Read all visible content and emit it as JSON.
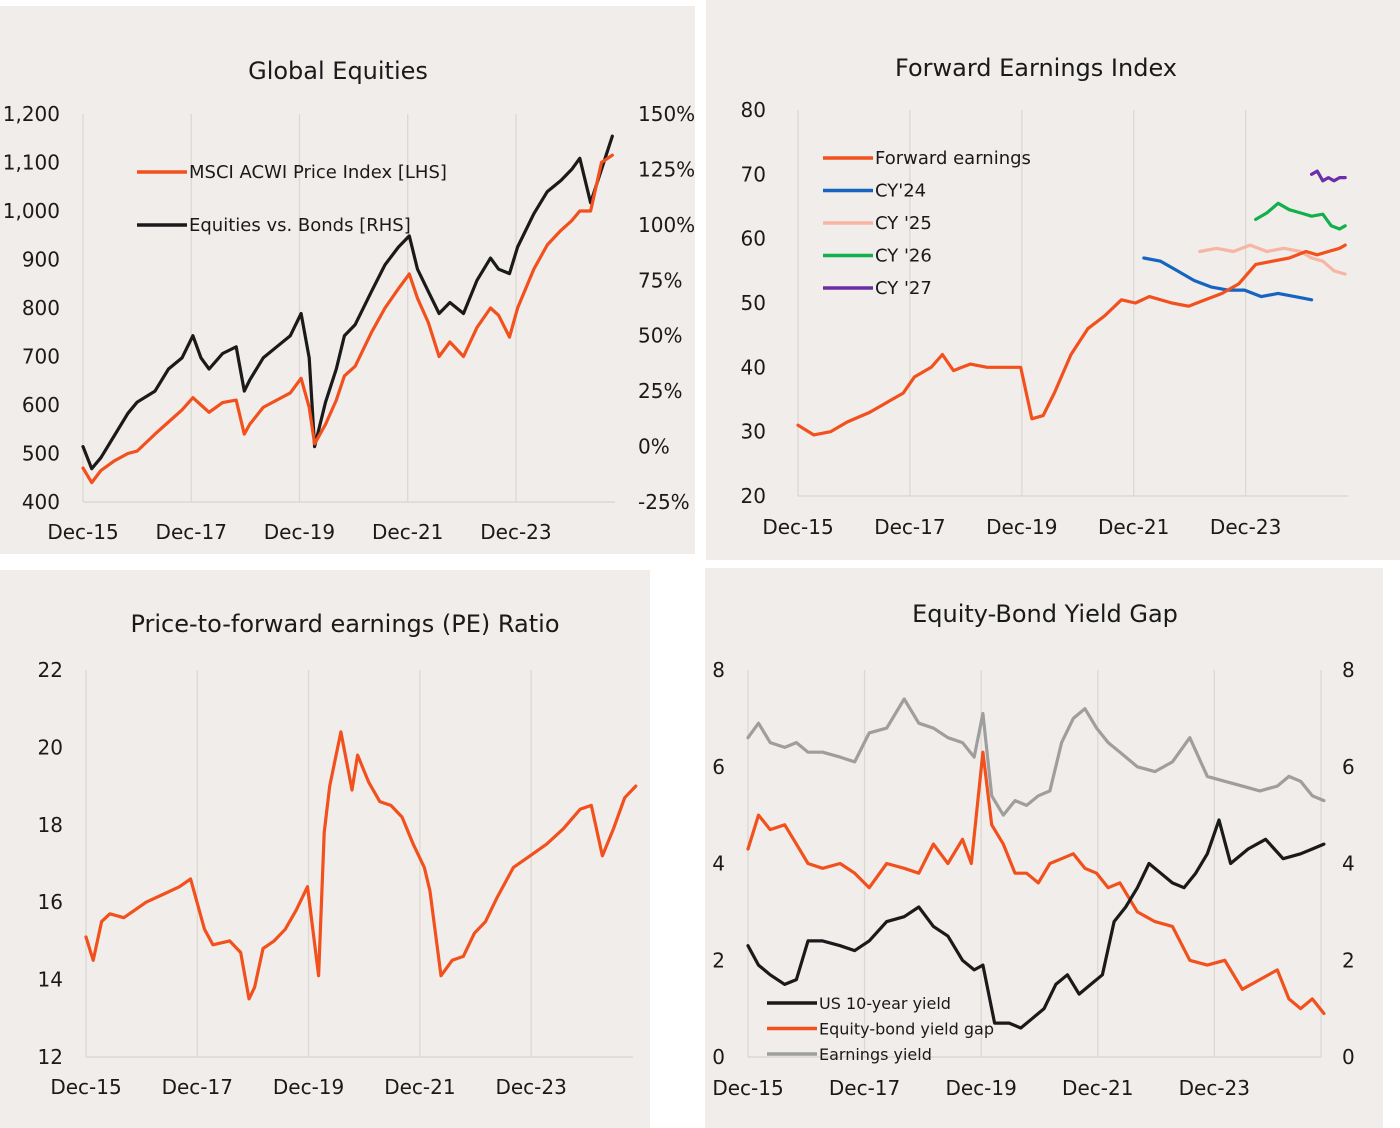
{
  "colors": {
    "orange": "#f2501d",
    "black": "#1a1a1a",
    "blue": "#1565c0",
    "pink": "#f7b5a4",
    "green": "#12b04a",
    "purple": "#6a2fa8",
    "grey": "#9e9e9e",
    "grid": "#dcd8d4"
  },
  "chart_data": [
    {
      "type": "line",
      "title": "Global Equities",
      "x_tick_labels": [
        "Dec-15",
        "Dec-17",
        "Dec-19",
        "Dec-21",
        "Dec-23"
      ],
      "x_range": [
        "2015-12",
        "2025-09"
      ],
      "y_left": {
        "ticks": [
          "400",
          "500",
          "600",
          "700",
          "800",
          "900",
          "1,000",
          "1,100",
          "1,200"
        ],
        "lim": [
          400,
          1200
        ]
      },
      "y_right": {
        "ticks": [
          "-25%",
          "0%",
          "25%",
          "50%",
          "75%",
          "100%",
          "125%",
          "150%"
        ],
        "lim": [
          -25,
          150
        ]
      },
      "grid": "vertical at x ticks",
      "legend_position": "top-left",
      "series": [
        {
          "name": "MSCI ACWI Price Index [LHS]",
          "axis": "left",
          "color": "#f2501d",
          "x": [
            2015.92,
            2016.08,
            2016.25,
            2016.5,
            2016.75,
            2016.92,
            2017.25,
            2017.5,
            2017.75,
            2017.95,
            2018.1,
            2018.25,
            2018.5,
            2018.75,
            2018.9,
            2019.0,
            2019.25,
            2019.5,
            2019.75,
            2019.95,
            2020.1,
            2020.2,
            2020.4,
            2020.6,
            2020.75,
            2020.95,
            2021.25,
            2021.5,
            2021.75,
            2021.95,
            2022.1,
            2022.3,
            2022.5,
            2022.7,
            2022.95,
            2023.2,
            2023.45,
            2023.6,
            2023.8,
            2023.95,
            2024.25,
            2024.5,
            2024.75,
            2024.95,
            2025.1,
            2025.3,
            2025.5,
            2025.7
          ],
          "y": [
            470,
            440,
            465,
            485,
            500,
            505,
            540,
            565,
            590,
            615,
            600,
            585,
            605,
            610,
            540,
            560,
            595,
            610,
            625,
            655,
            595,
            520,
            560,
            610,
            660,
            680,
            750,
            800,
            840,
            870,
            820,
            770,
            700,
            730,
            700,
            760,
            800,
            785,
            740,
            800,
            880,
            930,
            960,
            980,
            1000,
            1000,
            1100,
            1115
          ]
        },
        {
          "name": "Equities vs. Bonds [RHS]",
          "axis": "right",
          "color": "#1a1a1a",
          "x": [
            2015.92,
            2016.08,
            2016.25,
            2016.5,
            2016.75,
            2016.92,
            2017.25,
            2017.5,
            2017.75,
            2017.95,
            2018.1,
            2018.25,
            2018.5,
            2018.75,
            2018.9,
            2019.0,
            2019.25,
            2019.5,
            2019.75,
            2019.95,
            2020.1,
            2020.2,
            2020.4,
            2020.6,
            2020.75,
            2020.95,
            2021.25,
            2021.5,
            2021.75,
            2021.95,
            2022.1,
            2022.3,
            2022.5,
            2022.7,
            2022.95,
            2023.2,
            2023.45,
            2023.6,
            2023.8,
            2023.95,
            2024.25,
            2024.5,
            2024.75,
            2024.95,
            2025.1,
            2025.3,
            2025.5,
            2025.7
          ],
          "y": [
            0,
            -10,
            -5,
            5,
            15,
            20,
            25,
            35,
            40,
            50,
            40,
            35,
            42,
            45,
            25,
            30,
            40,
            45,
            50,
            60,
            40,
            0,
            20,
            35,
            50,
            55,
            70,
            82,
            90,
            95,
            80,
            70,
            60,
            65,
            60,
            75,
            85,
            80,
            78,
            90,
            105,
            115,
            120,
            125,
            130,
            110,
            125,
            140
          ]
        }
      ]
    },
    {
      "type": "line",
      "title": "Forward Earnings Index",
      "x_tick_labels": [
        "Dec-15",
        "Dec-17",
        "Dec-19",
        "Dec-21",
        "Dec-23"
      ],
      "x_range": [
        "2015-12",
        "2025-09"
      ],
      "y": {
        "ticks": [
          "20",
          "30",
          "40",
          "50",
          "60",
          "70",
          "80"
        ],
        "lim": [
          20,
          80
        ]
      },
      "grid": "vertical at x ticks",
      "legend_position": "top-left",
      "series": [
        {
          "name": "Forward earnings",
          "color": "#f2501d",
          "x": [
            2015.92,
            2016.2,
            2016.5,
            2016.8,
            2017.2,
            2017.5,
            2017.8,
            2018.0,
            2018.3,
            2018.5,
            2018.7,
            2018.85,
            2019.0,
            2019.3,
            2019.6,
            2019.9,
            2020.1,
            2020.3,
            2020.5,
            2020.8,
            2021.1,
            2021.4,
            2021.7,
            2021.95,
            2022.2,
            2022.6,
            2022.9,
            2023.2,
            2023.5,
            2023.8,
            2024.1,
            2024.4,
            2024.7,
            2025.0,
            2025.2,
            2025.4,
            2025.6,
            2025.7
          ],
          "y": [
            31,
            29.5,
            30,
            31.5,
            33,
            34.5,
            36,
            38.5,
            40,
            42,
            39.5,
            40,
            40.5,
            40,
            40,
            40,
            32,
            32.5,
            36,
            42,
            46,
            48,
            50.5,
            50,
            51,
            50,
            49.5,
            50.5,
            51.5,
            53,
            56,
            56.5,
            57,
            58,
            57.5,
            58,
            58.5,
            59
          ]
        },
        {
          "name": "CY'24",
          "color": "#1565c0",
          "x": [
            2022.1,
            2022.4,
            2022.7,
            2023.0,
            2023.3,
            2023.6,
            2023.9,
            2024.2,
            2024.5,
            2024.8,
            2025.1
          ],
          "y": [
            57,
            56.5,
            55,
            53.5,
            52.5,
            52,
            52,
            51,
            51.5,
            51,
            50.5
          ]
        },
        {
          "name": "CY '25",
          "color": "#f7b5a4",
          "x": [
            2023.1,
            2023.4,
            2023.7,
            2024.0,
            2024.3,
            2024.6,
            2024.9,
            2025.1,
            2025.3,
            2025.5,
            2025.7
          ],
          "y": [
            58,
            58.5,
            58,
            59,
            58,
            58.5,
            58,
            57,
            56.5,
            55,
            54.5
          ]
        },
        {
          "name": "CY '26",
          "color": "#12b04a",
          "x": [
            2024.1,
            2024.3,
            2024.5,
            2024.7,
            2024.9,
            2025.1,
            2025.3,
            2025.45,
            2025.6,
            2025.7
          ],
          "y": [
            63,
            64,
            65.5,
            64.5,
            64,
            63.5,
            63.8,
            62,
            61.5,
            62
          ]
        },
        {
          "name": "CY '27",
          "color": "#6a2fa8",
          "x": [
            2025.1,
            2025.2,
            2025.3,
            2025.4,
            2025.5,
            2025.6,
            2025.7
          ],
          "y": [
            70,
            70.5,
            69,
            69.5,
            69,
            69.5,
            69.5
          ]
        }
      ]
    },
    {
      "type": "line",
      "title": "Price-to-forward earnings (PE) Ratio",
      "x_tick_labels": [
        "Dec-15",
        "Dec-17",
        "Dec-19",
        "Dec-21",
        "Dec-23"
      ],
      "x_range": [
        "2015-12",
        "2025-09"
      ],
      "y": {
        "ticks": [
          "12",
          "14",
          "16",
          "18",
          "20",
          "22"
        ],
        "lim": [
          12,
          22
        ]
      },
      "grid": "vertical at x ticks",
      "series": [
        {
          "name": "",
          "color": "#f2501d",
          "x": [
            2015.92,
            2016.05,
            2016.2,
            2016.35,
            2016.6,
            2016.8,
            2017.0,
            2017.3,
            2017.6,
            2017.8,
            2018.05,
            2018.2,
            2018.5,
            2018.7,
            2018.85,
            2018.95,
            2019.1,
            2019.3,
            2019.5,
            2019.7,
            2019.9,
            2020.1,
            2020.2,
            2020.3,
            2020.5,
            2020.7,
            2020.8,
            2021.0,
            2021.2,
            2021.4,
            2021.6,
            2021.8,
            2022.0,
            2022.1,
            2022.3,
            2022.5,
            2022.7,
            2022.9,
            2023.1,
            2023.3,
            2023.6,
            2023.9,
            2024.2,
            2024.5,
            2024.8,
            2025.0,
            2025.2,
            2025.4,
            2025.6,
            2025.8
          ],
          "y": [
            15.1,
            14.5,
            15.5,
            15.7,
            15.6,
            15.8,
            16.0,
            16.2,
            16.4,
            16.6,
            15.3,
            14.9,
            15.0,
            14.7,
            13.5,
            13.8,
            14.8,
            15.0,
            15.3,
            15.8,
            16.4,
            14.1,
            17.8,
            19.0,
            20.4,
            18.9,
            19.8,
            19.1,
            18.6,
            18.5,
            18.2,
            17.5,
            16.9,
            16.3,
            14.1,
            14.5,
            14.6,
            15.2,
            15.5,
            16.1,
            16.9,
            17.2,
            17.5,
            17.9,
            18.4,
            18.5,
            17.2,
            17.9,
            18.7,
            19.0
          ]
        }
      ]
    },
    {
      "type": "line",
      "title": "Equity-Bond Yield Gap",
      "x_tick_labels": [
        "Dec-15",
        "Dec-17",
        "Dec-19",
        "Dec-21",
        "Dec-23"
      ],
      "x_range": [
        "2015-12",
        "2025-09"
      ],
      "y_left": {
        "ticks": [
          "0",
          "2",
          "4",
          "6",
          "8"
        ],
        "lim": [
          0,
          8
        ]
      },
      "y_right": {
        "ticks": [
          "0",
          "2",
          "4",
          "6",
          "8"
        ],
        "lim": [
          0,
          8
        ]
      },
      "grid": "vertical at x ticks",
      "legend_position": "bottom-left",
      "series": [
        {
          "name": "US 10-year yield",
          "color": "#1a1a1a",
          "x": [
            2015.92,
            2016.1,
            2016.3,
            2016.55,
            2016.75,
            2016.95,
            2017.2,
            2017.5,
            2017.75,
            2018.0,
            2018.3,
            2018.6,
            2018.85,
            2019.1,
            2019.35,
            2019.6,
            2019.8,
            2019.95,
            2020.15,
            2020.4,
            2020.6,
            2020.8,
            2021.0,
            2021.2,
            2021.4,
            2021.6,
            2021.8,
            2022.0,
            2022.2,
            2022.4,
            2022.6,
            2022.8,
            2023.0,
            2023.2,
            2023.4,
            2023.6,
            2023.8,
            2024.0,
            2024.2,
            2024.5,
            2024.8,
            2025.1,
            2025.4,
            2025.6,
            2025.8
          ],
          "y": [
            2.3,
            1.9,
            1.7,
            1.5,
            1.6,
            2.4,
            2.4,
            2.3,
            2.2,
            2.4,
            2.8,
            2.9,
            3.1,
            2.7,
            2.5,
            2.0,
            1.8,
            1.9,
            0.7,
            0.7,
            0.6,
            0.8,
            1.0,
            1.5,
            1.7,
            1.3,
            1.5,
            1.7,
            2.8,
            3.1,
            3.5,
            4.0,
            3.8,
            3.6,
            3.5,
            3.8,
            4.2,
            4.9,
            4.0,
            4.3,
            4.5,
            4.1,
            4.2,
            4.3,
            4.4
          ]
        },
        {
          "name": "Equity-bond yield gap",
          "color": "#f2501d",
          "x": [
            2015.92,
            2016.1,
            2016.3,
            2016.55,
            2016.75,
            2016.95,
            2017.2,
            2017.5,
            2017.75,
            2018.0,
            2018.3,
            2018.6,
            2018.85,
            2019.1,
            2019.35,
            2019.6,
            2019.75,
            2019.95,
            2020.1,
            2020.3,
            2020.5,
            2020.7,
            2020.9,
            2021.1,
            2021.3,
            2021.5,
            2021.7,
            2021.9,
            2022.1,
            2022.3,
            2022.6,
            2022.9,
            2023.2,
            2023.5,
            2023.8,
            2024.1,
            2024.4,
            2024.7,
            2025.0,
            2025.2,
            2025.4,
            2025.6,
            2025.8
          ],
          "y": [
            4.3,
            5.0,
            4.7,
            4.8,
            4.4,
            4.0,
            3.9,
            4.0,
            3.8,
            3.5,
            4.0,
            3.9,
            3.8,
            4.4,
            4.0,
            4.5,
            4.0,
            6.3,
            4.8,
            4.4,
            3.8,
            3.8,
            3.6,
            4.0,
            4.1,
            4.2,
            3.9,
            3.8,
            3.5,
            3.6,
            3.0,
            2.8,
            2.7,
            2.0,
            1.9,
            2.0,
            1.4,
            1.6,
            1.8,
            1.2,
            1.0,
            1.2,
            0.9
          ]
        },
        {
          "name": "Earnings yield",
          "color": "#9e9e9e",
          "x": [
            2015.92,
            2016.1,
            2016.3,
            2016.55,
            2016.75,
            2016.95,
            2017.2,
            2017.5,
            2017.75,
            2018.0,
            2018.3,
            2018.6,
            2018.85,
            2019.1,
            2019.35,
            2019.6,
            2019.8,
            2019.95,
            2020.1,
            2020.3,
            2020.5,
            2020.7,
            2020.9,
            2021.1,
            2021.3,
            2021.5,
            2021.7,
            2021.9,
            2022.1,
            2022.3,
            2022.6,
            2022.9,
            2023.2,
            2023.5,
            2023.8,
            2024.1,
            2024.4,
            2024.7,
            2025.0,
            2025.2,
            2025.4,
            2025.6,
            2025.8
          ],
          "y": [
            6.6,
            6.9,
            6.5,
            6.4,
            6.5,
            6.3,
            6.3,
            6.2,
            6.1,
            6.7,
            6.8,
            7.4,
            6.9,
            6.8,
            6.6,
            6.5,
            6.2,
            7.1,
            5.4,
            5.0,
            5.3,
            5.2,
            5.4,
            5.5,
            6.5,
            7.0,
            7.2,
            6.8,
            6.5,
            6.3,
            6.0,
            5.9,
            6.1,
            6.6,
            5.8,
            5.7,
            5.6,
            5.5,
            5.6,
            5.8,
            5.7,
            5.4,
            5.3
          ]
        }
      ]
    }
  ]
}
